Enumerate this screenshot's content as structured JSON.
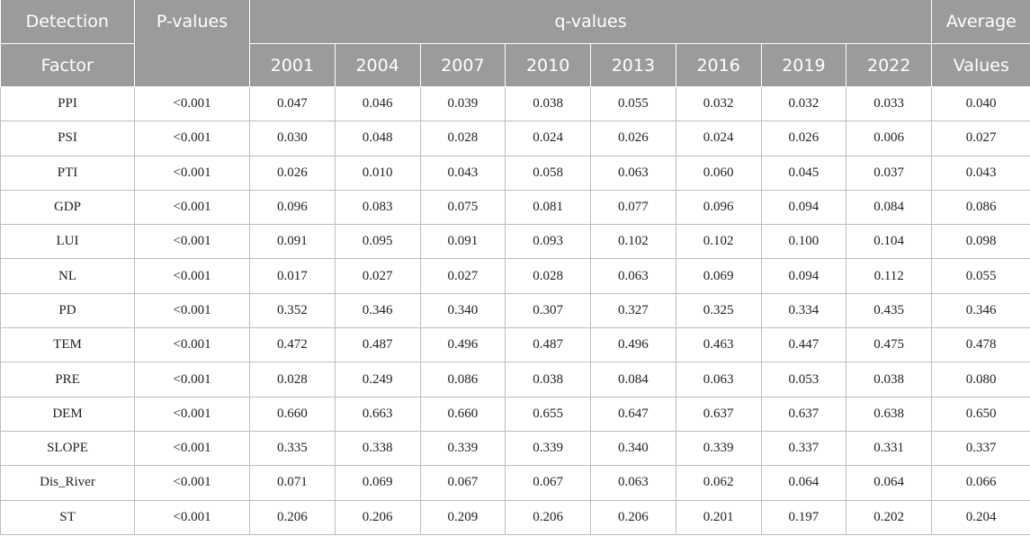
{
  "header": {
    "detection_factor_line1": "Detection",
    "detection_factor_line2": "Factor",
    "p_values": "P-values",
    "q_values": "q-values",
    "average_line1": "Average",
    "average_line2": "Values",
    "years": [
      "2001",
      "2004",
      "2007",
      "2010",
      "2013",
      "2016",
      "2019",
      "2022"
    ]
  },
  "rows": [
    {
      "factor": "PPI",
      "p": "<0.001",
      "q": [
        "0.047",
        "0.046",
        "0.039",
        "0.038",
        "0.055",
        "0.032",
        "0.032",
        "0.033"
      ],
      "avg": "0.040"
    },
    {
      "factor": "PSI",
      "p": "<0.001",
      "q": [
        "0.030",
        "0.048",
        "0.028",
        "0.024",
        "0.026",
        "0.024",
        "0.026",
        "0.006"
      ],
      "avg": "0.027"
    },
    {
      "factor": "PTI",
      "p": "<0.001",
      "q": [
        "0.026",
        "0.010",
        "0.043",
        "0.058",
        "0.063",
        "0.060",
        "0.045",
        "0.037"
      ],
      "avg": "0.043"
    },
    {
      "factor": "GDP",
      "p": "<0.001",
      "q": [
        "0.096",
        "0.083",
        "0.075",
        "0.081",
        "0.077",
        "0.096",
        "0.094",
        "0.084"
      ],
      "avg": "0.086"
    },
    {
      "factor": "LUI",
      "p": "<0.001",
      "q": [
        "0.091",
        "0.095",
        "0.091",
        "0.093",
        "0.102",
        "0.102",
        "0.100",
        "0.104"
      ],
      "avg": "0.098"
    },
    {
      "factor": "NL",
      "p": "<0.001",
      "q": [
        "0.017",
        "0.027",
        "0.027",
        "0.028",
        "0.063",
        "0.069",
        "0.094",
        "0.112"
      ],
      "avg": "0.055"
    },
    {
      "factor": "PD",
      "p": "<0.001",
      "q": [
        "0.352",
        "0.346",
        "0.340",
        "0.307",
        "0.327",
        "0.325",
        "0.334",
        "0.435"
      ],
      "avg": "0.346"
    },
    {
      "factor": "TEM",
      "p": "<0.001",
      "q": [
        "0.472",
        "0.487",
        "0.496",
        "0.487",
        "0.496",
        "0.463",
        "0.447",
        "0.475"
      ],
      "avg": "0.478"
    },
    {
      "factor": "PRE",
      "p": "<0.001",
      "q": [
        "0.028",
        "0.249",
        "0.086",
        "0.038",
        "0.084",
        "0.063",
        "0.053",
        "0.038"
      ],
      "avg": "0.080"
    },
    {
      "factor": "DEM",
      "p": "<0.001",
      "q": [
        "0.660",
        "0.663",
        "0.660",
        "0.655",
        "0.647",
        "0.637",
        "0.637",
        "0.638"
      ],
      "avg": "0.650"
    },
    {
      "factor": "SLOPE",
      "p": "<0.001",
      "q": [
        "0.335",
        "0.338",
        "0.339",
        "0.339",
        "0.340",
        "0.339",
        "0.337",
        "0.331"
      ],
      "avg": "0.337"
    },
    {
      "factor": "Dis_River",
      "p": "<0.001",
      "q": [
        "0.071",
        "0.069",
        "0.067",
        "0.067",
        "0.063",
        "0.062",
        "0.064",
        "0.064"
      ],
      "avg": "0.066"
    },
    {
      "factor": "ST",
      "p": "<0.001",
      "q": [
        "0.206",
        "0.206",
        "0.209",
        "0.206",
        "0.206",
        "0.201",
        "0.197",
        "0.202"
      ],
      "avg": "0.204"
    }
  ]
}
